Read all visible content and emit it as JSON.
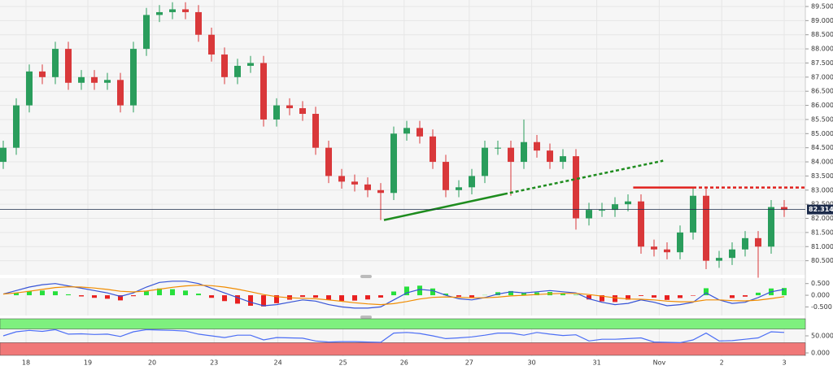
{
  "chart_data": [
    {
      "type": "candlestick",
      "xlim": [
        -0.25,
        61.625
      ],
      "xticks": [
        {
          "value": 1.75,
          "label": "18"
        },
        {
          "value": 6.5,
          "label": "19"
        },
        {
          "value": 11.44,
          "label": "20"
        },
        {
          "value": 16.2,
          "label": "23"
        },
        {
          "value": 21.1,
          "label": "24"
        },
        {
          "value": 26.1,
          "label": "25"
        },
        {
          "value": 30.8,
          "label": "26"
        },
        {
          "value": 35.8,
          "label": "27"
        },
        {
          "value": 40.6,
          "label": "30"
        },
        {
          "value": 45.6,
          "label": "31"
        },
        {
          "value": 50.4,
          "label": "Nov"
        },
        {
          "value": 55.2,
          "label": "2"
        },
        {
          "value": 60,
          "label": "3"
        }
      ],
      "ylim": [
        80.0,
        89.73
      ],
      "yticks": [
        {
          "value": 80.5,
          "label": "80.500"
        },
        {
          "value": 81,
          "label": "81.000"
        },
        {
          "value": 81.5,
          "label": "81.500"
        },
        {
          "value": 82,
          "label": "82.000"
        },
        {
          "value": 82.5,
          "label": "82.500"
        },
        {
          "value": 83,
          "label": "83.000"
        },
        {
          "value": 83.5,
          "label": "83.500"
        },
        {
          "value": 84,
          "label": "84.000"
        },
        {
          "value": 84.5,
          "label": "84.500"
        },
        {
          "value": 85,
          "label": "85.000"
        },
        {
          "value": 85.5,
          "label": "85.500"
        },
        {
          "value": 86,
          "label": "86.000"
        },
        {
          "value": 86.5,
          "label": "86.500"
        },
        {
          "value": 87,
          "label": "87.000"
        },
        {
          "value": 87.5,
          "label": "87.500"
        },
        {
          "value": 88,
          "label": "88.000"
        },
        {
          "value": 88.5,
          "label": "88.500"
        },
        {
          "value": 89,
          "label": "89.000"
        },
        {
          "value": 89.5,
          "label": "89.500"
        }
      ],
      "grid": true,
      "up_color": "#2a9d5c",
      "down_color": "#d9383a",
      "open": [
        84.0,
        84.5,
        86.0,
        87.2,
        87.0,
        88.0,
        86.8,
        87.0,
        86.8,
        86.9,
        86.0,
        88.0,
        89.2,
        89.3,
        89.4,
        89.3,
        88.5,
        87.8,
        87.0,
        87.4,
        87.5,
        85.5,
        86.0,
        85.9,
        85.7,
        84.5,
        83.5,
        83.3,
        83.2,
        83.0,
        82.9,
        85.0,
        85.2,
        84.9,
        84.0,
        83.0,
        83.1,
        83.5,
        84.5,
        84.5,
        84.0,
        84.7,
        84.4,
        84.0,
        84.2,
        82.0,
        82.3,
        82.3,
        82.5,
        82.6,
        81.0,
        80.9,
        80.8,
        81.5,
        82.8,
        80.5,
        80.6,
        80.9,
        81.3,
        81.0,
        82.4
      ],
      "high": [
        84.75,
        86.25,
        87.45,
        87.45,
        88.25,
        88.25,
        87.25,
        87.25,
        87.15,
        87.15,
        88.25,
        89.45,
        89.55,
        89.65,
        89.65,
        89.55,
        88.75,
        88.05,
        87.65,
        87.75,
        87.75,
        86.25,
        86.25,
        86.15,
        85.95,
        84.75,
        83.75,
        83.55,
        83.45,
        83.25,
        85.25,
        85.45,
        85.45,
        85.15,
        84.25,
        83.35,
        83.75,
        84.75,
        84.75,
        84.75,
        85.5,
        84.95,
        84.65,
        84.45,
        84.45,
        82.55,
        82.55,
        82.75,
        82.85,
        82.85,
        81.25,
        81.15,
        81.75,
        83.1,
        83.05,
        80.85,
        81.15,
        81.55,
        81.55,
        82.65,
        82.65
      ],
      "low": [
        83.75,
        84.25,
        85.75,
        86.75,
        86.75,
        86.55,
        86.55,
        86.55,
        86.55,
        85.75,
        85.75,
        87.75,
        88.95,
        89.05,
        89.05,
        88.25,
        87.55,
        86.75,
        86.75,
        87.15,
        85.25,
        85.25,
        85.65,
        85.45,
        84.25,
        83.25,
        83.05,
        82.95,
        82.75,
        81.94,
        82.65,
        84.75,
        84.65,
        83.75,
        82.75,
        82.75,
        82.85,
        83.25,
        84.25,
        82.8,
        83.75,
        84.15,
        83.75,
        83.75,
        81.6,
        81.75,
        82.05,
        82.05,
        82.25,
        80.75,
        80.65,
        80.55,
        80.55,
        81.25,
        80.2,
        80.25,
        80.35,
        80.65,
        79.9,
        80.75,
        82.05
      ],
      "close": [
        84.5,
        86.0,
        87.2,
        87.0,
        88.0,
        86.8,
        87.0,
        86.8,
        86.9,
        86.0,
        88.0,
        89.2,
        89.3,
        89.4,
        89.3,
        88.5,
        87.8,
        87.0,
        87.4,
        87.5,
        85.5,
        86.0,
        85.9,
        85.7,
        84.5,
        83.5,
        83.3,
        83.2,
        83.0,
        82.9,
        85.0,
        85.2,
        84.9,
        84.0,
        83.0,
        83.1,
        83.5,
        84.5,
        84.5,
        84.0,
        84.7,
        84.4,
        84.0,
        84.2,
        82.0,
        82.3,
        82.3,
        82.5,
        82.6,
        81.0,
        80.9,
        80.8,
        81.5,
        82.8,
        80.5,
        80.6,
        80.9,
        81.3,
        81.0,
        82.4,
        82.3
      ],
      "last_price": 82.314,
      "last_price_color": "#1c2b4a",
      "drawings": [
        {
          "color": "#1e8c1e",
          "style": "solid",
          "x": [
            29.25,
            38.5
          ],
          "y": [
            81.94,
            82.86
          ]
        },
        {
          "color": "#1e8c1e",
          "style": "dotted",
          "x": [
            38.5,
            50.7
          ],
          "y": [
            82.86,
            84.04
          ]
        },
        {
          "color": "#e0211d",
          "style": "solid",
          "x": [
            48.4,
            53.0
          ],
          "y": [
            83.09,
            83.09
          ]
        },
        {
          "color": "#e0211d",
          "style": "dotted",
          "x": [
            53.0,
            61.6
          ],
          "y": [
            83.09,
            83.09
          ]
        }
      ]
    },
    {
      "type": "macd",
      "ylim": [
        -0.867,
        0.733
      ],
      "yticks": [
        {
          "value": -0.5,
          "label": "-0.500"
        },
        {
          "value": 0,
          "label": "0.000"
        },
        {
          "value": 0.5,
          "label": "0.500"
        }
      ],
      "histogram": {
        "up_color": "#27e03c",
        "down_color": "#e82020",
        "values": [
          0,
          0.1,
          0.18,
          0.2,
          0.17,
          0.04,
          -0.05,
          -0.11,
          -0.15,
          -0.22,
          -0.04,
          0.17,
          0.29,
          0.26,
          0.2,
          0.07,
          -0.11,
          -0.25,
          -0.36,
          -0.45,
          -0.48,
          -0.34,
          -0.19,
          -0.07,
          -0.1,
          -0.2,
          -0.24,
          -0.23,
          -0.18,
          -0.1,
          0.16,
          0.37,
          0.41,
          0.29,
          0.07,
          -0.06,
          -0.09,
          0.01,
          0.13,
          0.18,
          0.1,
          0.12,
          0.14,
          0.07,
          0.02,
          -0.18,
          -0.26,
          -0.29,
          -0.19,
          -0.03,
          -0.1,
          -0.2,
          -0.12,
          -0.02,
          0.3,
          0.0,
          -0.12,
          -0.06,
          0.11,
          0.29,
          0.31
        ]
      },
      "series": [
        {
          "color": "#3653d6",
          "values": [
            0.05,
            0.2,
            0.35,
            0.45,
            0.5,
            0.4,
            0.3,
            0.2,
            0.1,
            -0.05,
            0.1,
            0.35,
            0.55,
            0.6,
            0.6,
            0.5,
            0.3,
            0.1,
            -0.1,
            -0.3,
            -0.45,
            -0.4,
            -0.3,
            -0.2,
            -0.25,
            -0.4,
            -0.5,
            -0.55,
            -0.55,
            -0.5,
            -0.2,
            0.1,
            0.25,
            0.2,
            0.0,
            -0.15,
            -0.2,
            -0.1,
            0.05,
            0.15,
            0.1,
            0.15,
            0.2,
            0.15,
            0.1,
            -0.15,
            -0.3,
            -0.4,
            -0.35,
            -0.2,
            -0.3,
            -0.45,
            -0.4,
            -0.3,
            0.1,
            -0.2,
            -0.35,
            -0.3,
            -0.1,
            0.15,
            0.25
          ]
        },
        {
          "color": "#f08c00",
          "values": [
            0.05,
            0.1,
            0.17,
            0.25,
            0.33,
            0.36,
            0.35,
            0.31,
            0.25,
            0.17,
            0.14,
            0.18,
            0.26,
            0.34,
            0.4,
            0.43,
            0.41,
            0.35,
            0.26,
            0.15,
            0.03,
            -0.06,
            -0.11,
            -0.13,
            -0.15,
            -0.2,
            -0.26,
            -0.32,
            -0.37,
            -0.4,
            -0.36,
            -0.27,
            -0.16,
            -0.09,
            -0.07,
            -0.09,
            -0.11,
            -0.11,
            -0.08,
            -0.03,
            0.0,
            0.03,
            0.06,
            0.08,
            0.08,
            0.03,
            -0.04,
            -0.11,
            -0.16,
            -0.17,
            -0.2,
            -0.25,
            -0.28,
            -0.28,
            -0.2,
            -0.2,
            -0.23,
            -0.24,
            -0.21,
            -0.14,
            -0.06
          ]
        }
      ]
    },
    {
      "type": "rsi",
      "ylim": [
        -9.5,
        100
      ],
      "yticks": [
        {
          "value": 0,
          "label": "0.000"
        },
        {
          "value": 50,
          "label": "50.000"
        }
      ],
      "zones": [
        {
          "from": 70,
          "to": 100,
          "color": "#7ef07e"
        },
        {
          "from": -7,
          "to": 30,
          "color": "#f07878"
        }
      ],
      "series": [
        {
          "color": "#4c6ef5",
          "values": [
            50,
            62,
            66,
            63,
            68,
            55,
            56,
            54,
            55,
            48,
            62,
            68,
            67,
            66,
            64,
            55,
            50,
            45,
            52,
            52,
            38,
            45,
            44,
            43,
            35,
            32,
            33,
            33,
            32,
            31,
            58,
            60,
            57,
            50,
            42,
            44,
            47,
            52,
            58,
            58,
            52,
            60,
            55,
            51,
            53,
            35,
            40,
            40,
            42,
            44,
            32,
            31,
            30,
            38,
            58,
            35,
            36,
            40,
            44,
            62,
            60
          ]
        }
      ]
    }
  ]
}
